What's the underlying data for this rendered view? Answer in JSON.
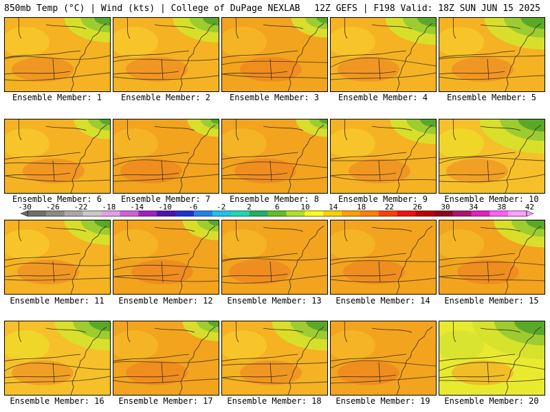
{
  "header": {
    "left": "850mb Temp (°C) | Wind (kts) | College of DuPage NEXLAB",
    "right": "12Z GEFS | F198 Valid: 18Z SUN JUN 15 2025"
  },
  "member_label_prefix": "Ensemble Member:",
  "members": [
    {
      "id": "1",
      "label": "Ensemble Member: 1",
      "fill": "warm",
      "cool_ne": 0.45
    },
    {
      "id": "2",
      "label": "Ensemble Member: 2",
      "fill": "warm",
      "cool_ne": 0.45
    },
    {
      "id": "3",
      "label": "Ensemble Member: 3",
      "fill": "hot",
      "cool_ne": 0.25
    },
    {
      "id": "4",
      "label": "Ensemble Member: 4",
      "fill": "warm",
      "cool_ne": 0.55
    },
    {
      "id": "5",
      "label": "Ensemble Member: 5",
      "fill": "warm",
      "cool_ne": 0.75
    },
    {
      "id": "6",
      "label": "Ensemble Member: 6",
      "fill": "warm",
      "cool_ne": 0.25
    },
    {
      "id": "7",
      "label": "Ensemble Member: 7",
      "fill": "hot",
      "cool_ne": 0.15
    },
    {
      "id": "8",
      "label": "Ensemble Member: 8",
      "fill": "hot",
      "cool_ne": 0.15
    },
    {
      "id": "9",
      "label": "Ensemble Member: 9",
      "fill": "warm",
      "cool_ne": 0.45
    },
    {
      "id": "10",
      "label": "Ensemble Member: 10",
      "fill": "mild",
      "cool_ne": 0.85
    },
    {
      "id": "11",
      "label": "Ensemble Member: 11",
      "fill": "warm",
      "cool_ne": 0.45
    },
    {
      "id": "12",
      "label": "Ensemble Member: 12",
      "fill": "hot",
      "cool_ne": 0.25
    },
    {
      "id": "13",
      "label": "Ensemble Member: 13",
      "fill": "hot",
      "cool_ne": 0.0
    },
    {
      "id": "14",
      "label": "Ensemble Member: 14",
      "fill": "hot",
      "cool_ne": 0.0
    },
    {
      "id": "15",
      "label": "Ensemble Member: 15",
      "fill": "hot",
      "cool_ne": 0.55
    },
    {
      "id": "16",
      "label": "Ensemble Member: 16",
      "fill": "mild",
      "cool_ne": 0.65
    },
    {
      "id": "17",
      "label": "Ensemble Member: 17",
      "fill": "hot",
      "cool_ne": 0.25
    },
    {
      "id": "18",
      "label": "Ensemble Member: 18",
      "fill": "warm",
      "cool_ne": 0.65
    },
    {
      "id": "19",
      "label": "Ensemble Member: 19",
      "fill": "hot",
      "cool_ne": 0.0
    },
    {
      "id": "20",
      "label": "Ensemble Member: 20",
      "fill": "cool",
      "cool_ne": 1.0
    }
  ],
  "colorbar": {
    "labels": [
      "-30",
      "-26",
      "-22",
      "-18",
      "-14",
      "-10",
      "-6",
      "-2",
      "2",
      "6",
      "10",
      "14",
      "18",
      "22",
      "26",
      "30",
      "34",
      "38",
      "42"
    ],
    "colors": [
      "#6e6e6e",
      "#8a8a8a",
      "#a8a8a8",
      "#c8c8c8",
      "#e0a0e8",
      "#d060e0",
      "#a020c0",
      "#5010b0",
      "#2030d0",
      "#2080f0",
      "#20c0f0",
      "#20d8b0",
      "#20b060",
      "#60c020",
      "#b0e020",
      "#ffff20",
      "#ffd000",
      "#ffa000",
      "#ff8000",
      "#ff4000",
      "#f01010",
      "#c00000",
      "#900020",
      "#b01070",
      "#e020c0",
      "#ff60ff",
      "#ffa0ff"
    ]
  }
}
